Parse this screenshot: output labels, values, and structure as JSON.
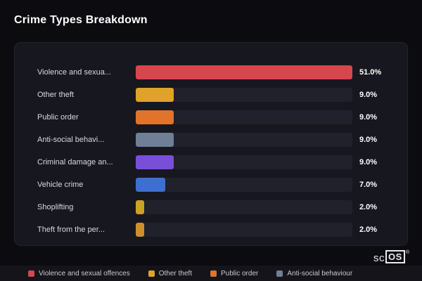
{
  "title": "Crime Types Breakdown",
  "chart_data": {
    "type": "bar",
    "orientation": "horizontal",
    "title": "Crime Types Breakdown",
    "xlabel": "",
    "ylabel": "",
    "max_value": 51,
    "grid": false,
    "legend_position": "bottom",
    "categories": [
      "Violence and sexua...",
      "Other theft",
      "Public order",
      "Anti-social behavi...",
      "Criminal damage an...",
      "Vehicle crime",
      "Shoplifting",
      "Theft from the per..."
    ],
    "values": [
      51,
      9,
      9,
      9,
      9,
      7,
      2,
      2
    ],
    "rows": [
      {
        "label": "Violence and sexua...",
        "value": 51,
        "value_label": "51.0%",
        "color": "#d9454d"
      },
      {
        "label": "Other theft",
        "value": 9,
        "value_label": "9.0%",
        "color": "#dfa32b"
      },
      {
        "label": "Public order",
        "value": 9,
        "value_label": "9.0%",
        "color": "#e0742c"
      },
      {
        "label": "Anti-social behavi...",
        "value": 9,
        "value_label": "9.0%",
        "color": "#6e7f96"
      },
      {
        "label": "Criminal damage an...",
        "value": 9,
        "value_label": "9.0%",
        "color": "#7a4fd8"
      },
      {
        "label": "Vehicle crime",
        "value": 7,
        "value_label": "7.0%",
        "color": "#3c6fd1"
      },
      {
        "label": "Shoplifting",
        "value": 2,
        "value_label": "2.0%",
        "color": "#c9a227"
      },
      {
        "label": "Theft from the per...",
        "value": 2,
        "value_label": "2.0%",
        "color": "#cf8f2a"
      }
    ]
  },
  "legend": [
    {
      "label": "Violence and sexual offences",
      "color": "#d9454d"
    },
    {
      "label": "Other theft",
      "color": "#dfa32b"
    },
    {
      "label": "Public order",
      "color": "#e0742c"
    },
    {
      "label": "Anti-social behaviour",
      "color": "#6e7f96"
    }
  ],
  "brand": {
    "prefix": "sc",
    "boxed": "OS",
    "reg": "®"
  },
  "colors": {
    "background": "#0b0b10",
    "card": "#17171f",
    "track": "#21212b",
    "footer": "#14141a",
    "title_text": "#ffffff",
    "label_text": "#d9d9de"
  }
}
